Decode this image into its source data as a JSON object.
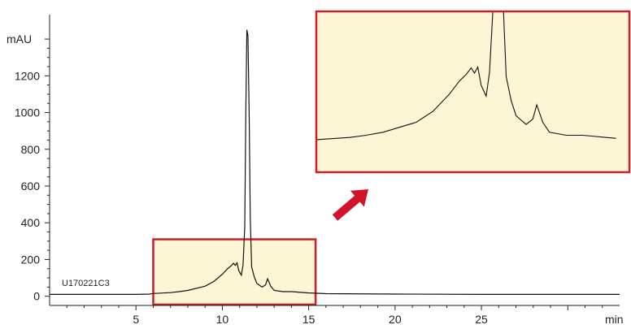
{
  "chart_data": {
    "type": "line",
    "title": "",
    "xlabel": "min",
    "ylabel": "mAU",
    "xlim": [
      0,
      33
    ],
    "ylim": [
      -50,
      1480
    ],
    "x_ticks": [
      5,
      10,
      15,
      20,
      25
    ],
    "x_tick_labels": [
      "5",
      "10",
      "15",
      "20",
      "25"
    ],
    "x_unit_label": "min",
    "y_ticks": [
      0,
      200,
      400,
      600,
      800,
      1000,
      1200
    ],
    "y_tick_labels": [
      "0",
      "200",
      "400",
      "600",
      "800",
      "1000",
      "1200"
    ],
    "y_unit_label": "mAU",
    "grid": false,
    "sample_label": "U170221C3",
    "colors": {
      "trace": "#111111",
      "highlight_border": "#cc1f2a",
      "highlight_fill": "#fdf6d4",
      "arrow": "#d2142a"
    },
    "series": [
      {
        "x": [
          0,
          3.0,
          5.0,
          5.8,
          6.0,
          7.0,
          7.5,
          8.0,
          9.0,
          9.5,
          10.0,
          10.3,
          10.5,
          10.65,
          10.75,
          10.85,
          10.95,
          11.1,
          11.2,
          11.3,
          11.36,
          11.42,
          11.48,
          11.55,
          11.62,
          11.7,
          11.85,
          12.0,
          12.3,
          12.5,
          12.62,
          12.8,
          13.0,
          13.5,
          14.0,
          15.0,
          16.0,
          20.0,
          25.0,
          30.0,
          33.0
        ],
        "y": [
          10,
          10,
          10,
          12,
          15,
          20,
          25,
          32,
          55,
          80,
          120,
          150,
          165,
          180,
          168,
          182,
          140,
          115,
          170,
          380,
          1000,
          1450,
          1420,
          1000,
          420,
          160,
          105,
          70,
          50,
          62,
          95,
          55,
          32,
          25,
          25,
          18,
          14,
          12,
          10,
          10,
          10
        ]
      }
    ],
    "highlight_region": {
      "x": [
        6.0,
        15.4
      ],
      "y": [
        -45,
        310
      ]
    },
    "inset": {
      "xlim": [
        6.0,
        15.4
      ],
      "ylim": [
        -45,
        310
      ],
      "description_source": "zoom of highlighted region"
    }
  }
}
